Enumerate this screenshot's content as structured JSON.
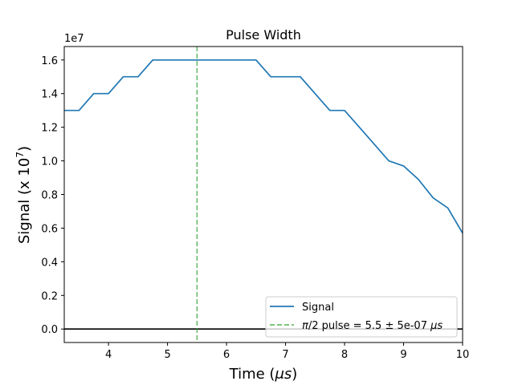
{
  "chart_data": {
    "type": "line",
    "title": "Pulse Width",
    "xlabel_text": "Time (",
    "xlabel_unit": "μs",
    "xlabel_close": ")",
    "ylabel_text": "Signal (x 10",
    "ylabel_exp": "7",
    "ylabel_close": ")",
    "y_offset_label": "1e7",
    "xlim": [
      3.25,
      10
    ],
    "ylim": [
      -0.8,
      16.8
    ],
    "y_scale_factor": 10000000,
    "xticks": [
      4,
      5,
      6,
      7,
      8,
      9,
      10
    ],
    "yticks": [
      0.0,
      0.2,
      0.4,
      0.6,
      0.8,
      1.0,
      1.2,
      1.4,
      1.6
    ],
    "series": [
      {
        "name": "Signal",
        "color": "#1f77b4",
        "x": [
          3.25,
          3.5,
          3.75,
          4.0,
          4.25,
          4.5,
          4.75,
          5.0,
          5.25,
          5.5,
          5.75,
          6.0,
          6.25,
          6.5,
          6.75,
          7.0,
          7.25,
          7.5,
          7.75,
          8.0,
          8.25,
          8.5,
          8.75,
          9.0,
          9.25,
          9.5,
          9.75,
          10.0
        ],
        "y": [
          1.3,
          1.3,
          1.4,
          1.4,
          1.5,
          1.5,
          1.6,
          1.6,
          1.6,
          1.6,
          1.6,
          1.6,
          1.6,
          1.6,
          1.5,
          1.5,
          1.5,
          1.4,
          1.3,
          1.3,
          1.2,
          1.1,
          1.0,
          0.97,
          0.89,
          0.78,
          0.72,
          0.57
        ]
      }
    ],
    "vline": {
      "x": 5.5,
      "color": "#2ca02c",
      "label_math": "π",
      "label_rest": "/2 pulse = 5.5 ± 5e-07 ",
      "label_unit": "μs"
    },
    "hline": {
      "y": 0.0,
      "color": "#000000"
    },
    "legend": {
      "placement": "lower-right"
    },
    "grid": false
  }
}
